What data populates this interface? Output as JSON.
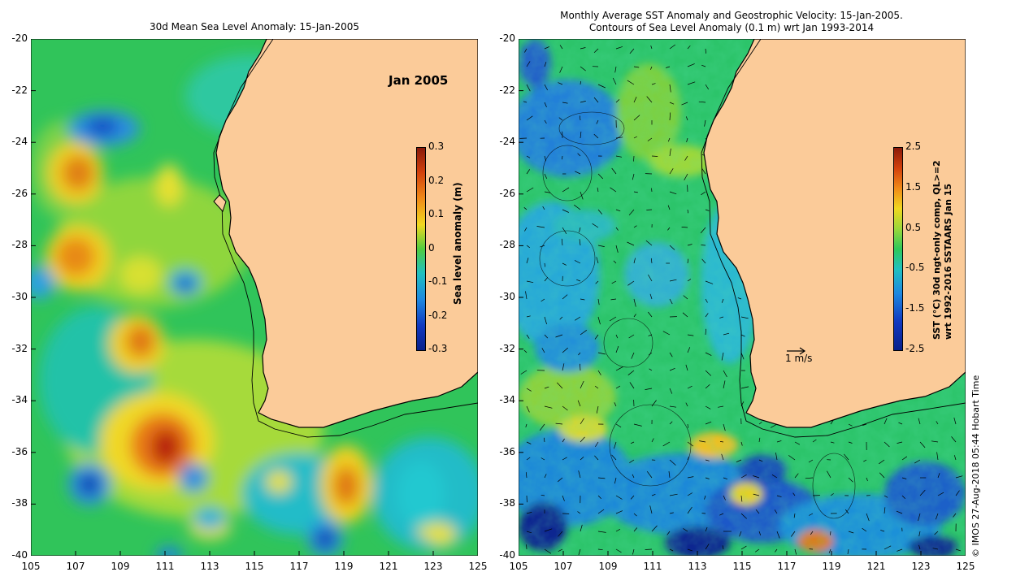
{
  "left_panel": {
    "title": "30d Mean Sea Level Anomaly: 15-Jan-2005",
    "date_label": "Jan 2005",
    "colorbar_label": "Sea level anomaly (m)",
    "colorbar_ticks": [
      "0.3",
      "0.2",
      "0.1",
      "0",
      "-0.1",
      "-0.2",
      "-0.3"
    ],
    "y_ticks": [
      "-20",
      "-22",
      "-24",
      "-26",
      "-28",
      "-30",
      "-32",
      "-34",
      "-36",
      "-38",
      "-40"
    ],
    "x_ticks": [
      "105",
      "107",
      "109",
      "111",
      "113",
      "115",
      "117",
      "119",
      "121",
      "123",
      "125"
    ]
  },
  "right_panel": {
    "title_line1": "Monthly Average SST Anomaly  and Geostrophic Velocity: 15-Jan-2005.",
    "title_line2": "Contours of Sea Level Anomaly (0.1 m) wrt Jan 1993-2014",
    "scale_arrow_label": "1 m/s",
    "colorbar_label_line1": "SST (°C) 30d ngt-only comp, QL>=2",
    "colorbar_label_line2": "wrt 1992-2016 SSTAARS Jan 15",
    "colorbar_ticks": [
      "2.5",
      "1.5",
      "0.5",
      "-0.5",
      "-1.5",
      "-2.5"
    ],
    "y_ticks": [
      "-20",
      "-22",
      "-24",
      "-26",
      "-28",
      "-30",
      "-32",
      "-34",
      "-36",
      "-38",
      "-40"
    ],
    "x_ticks": [
      "105",
      "107",
      "109",
      "111",
      "113",
      "115",
      "117",
      "119",
      "121",
      "123",
      "125"
    ]
  },
  "credit": "© IMOS 27-Aug-2018 05:44 Hobart Time",
  "colors": {
    "land": "#fbcb99",
    "ocean_base": "#2ec85a",
    "sla_high": "#d23a0c",
    "sla_low": "#0a2aa0"
  }
}
